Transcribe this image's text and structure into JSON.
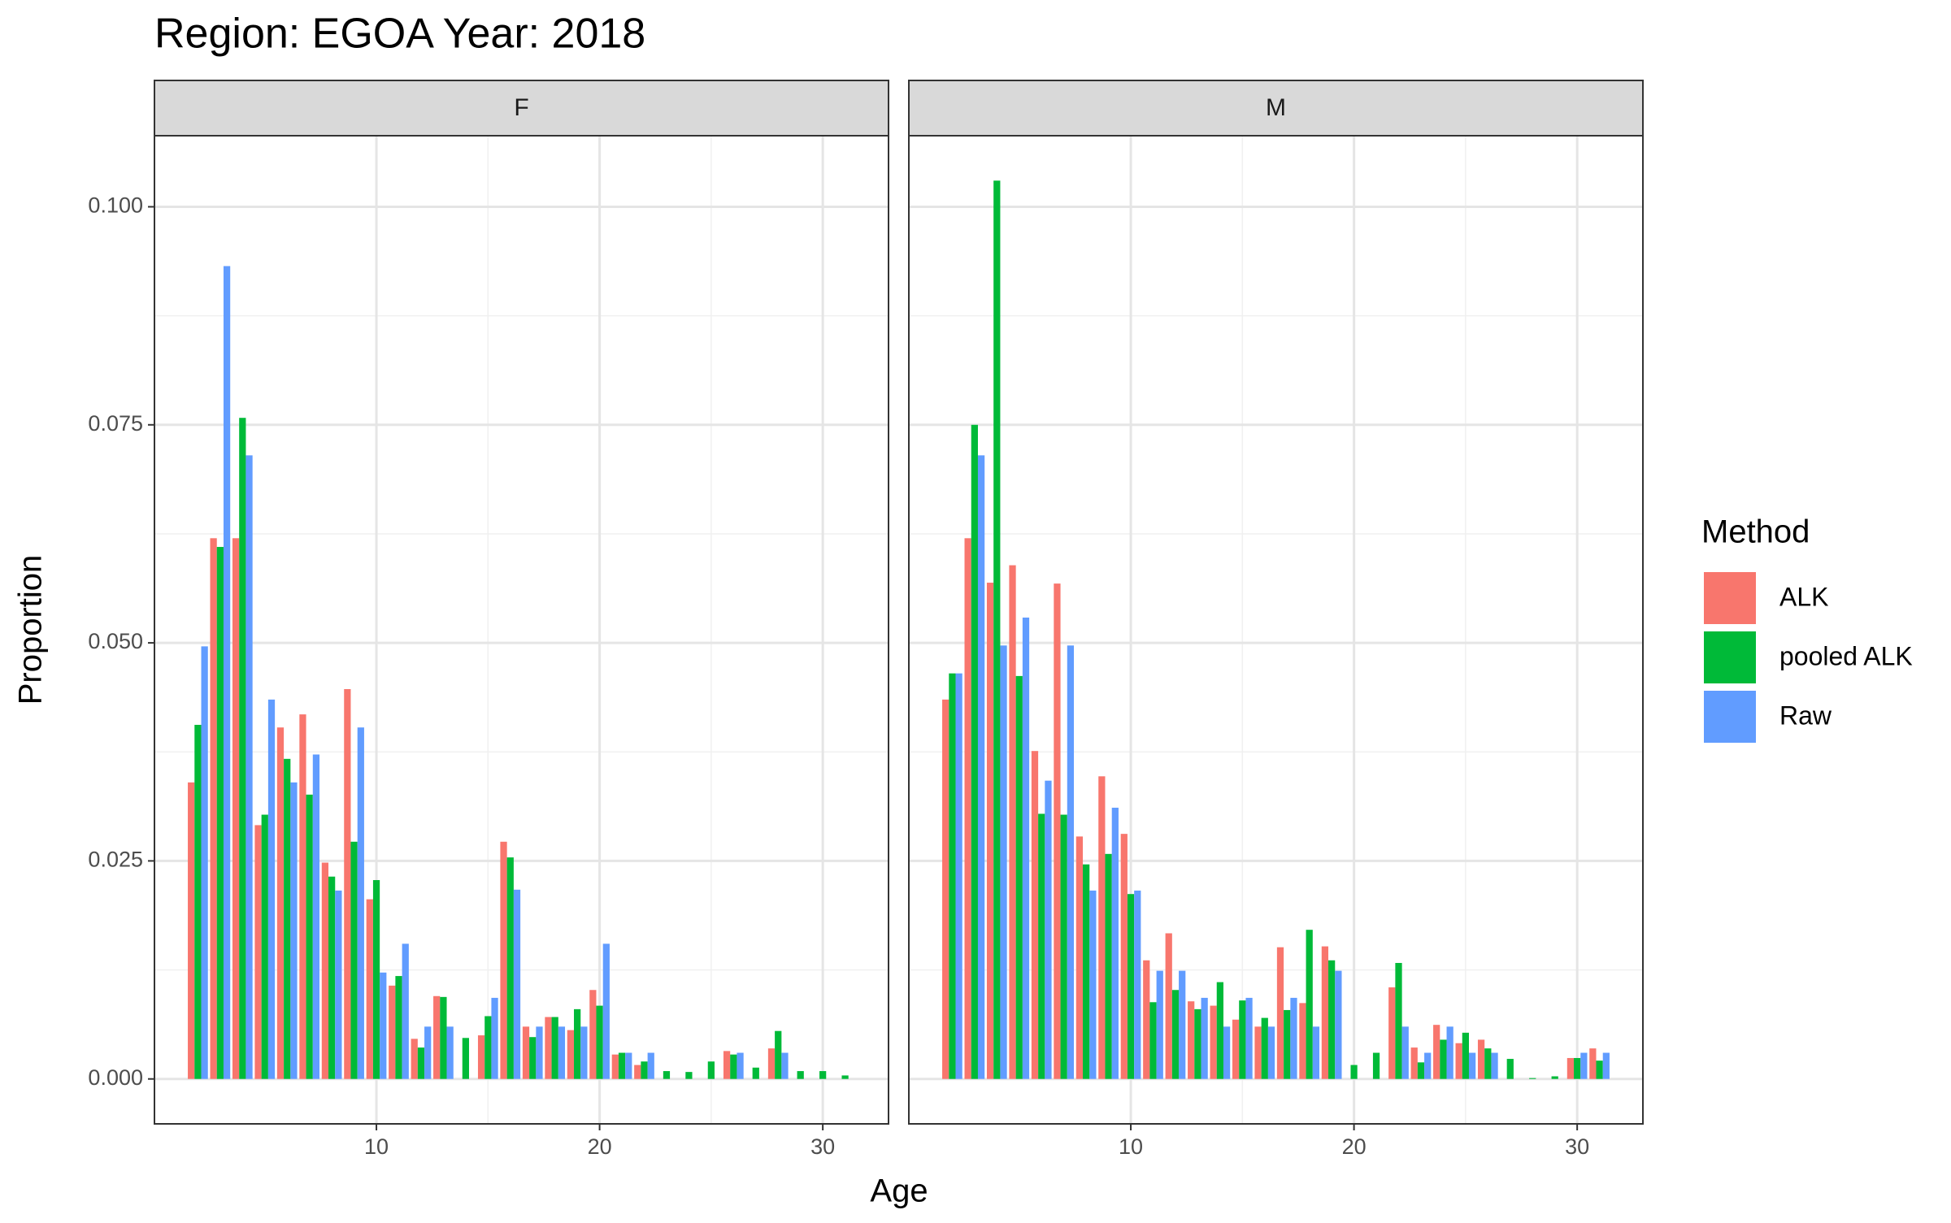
{
  "chart_data": {
    "type": "bar",
    "title": "Region: EGOA Year: 2018",
    "x_label": "Age",
    "y_label": "Proportion",
    "legend_title": "Method",
    "x": [
      2,
      3,
      4,
      5,
      6,
      7,
      8,
      9,
      10,
      11,
      12,
      13,
      14,
      15,
      16,
      17,
      18,
      19,
      20,
      21,
      22,
      23,
      24,
      25,
      26,
      27,
      28,
      29,
      30,
      31
    ],
    "xlim": [
      0.055,
      32.945
    ],
    "xticks": [
      10,
      20,
      30
    ],
    "ylim": [
      -0.00515,
      0.10815
    ],
    "yticks": [
      {
        "value": 0,
        "label": "0.000"
      },
      {
        "value": 0.025,
        "label": "0.025"
      },
      {
        "value": 0.05,
        "label": "0.050"
      },
      {
        "value": 0.075,
        "label": "0.075"
      },
      {
        "value": 0.1,
        "label": "0.100"
      }
    ],
    "grid": true,
    "legend": "right",
    "facets": [
      {
        "name": "F",
        "series": [
          {
            "name": "ALK",
            "color": "#f8766d",
            "values": [
              0.034,
              0.062,
              0.062,
              0.0291,
              0.0403,
              0.0418,
              0.0248,
              0.0447,
              0.0206,
              0.0107,
              0.0046,
              0.0095,
              null,
              0.005,
              0.0272,
              0.006,
              0.0071,
              0.0056,
              0.0102,
              0.0028,
              0.0016,
              null,
              null,
              null,
              0.0032,
              null,
              0.0035,
              null,
              null,
              null
            ]
          },
          {
            "name": "pooled ALK",
            "color": "#00ba38",
            "values": [
              0.0406,
              0.061,
              0.0758,
              0.0303,
              0.0367,
              0.0326,
              0.0232,
              0.0272,
              0.0228,
              0.0118,
              0.0036,
              0.0094,
              0.0047,
              0.0072,
              0.0254,
              0.0048,
              0.0071,
              0.008,
              0.0084,
              0.003,
              0.002,
              0.0009,
              0.0008,
              0.002,
              0.0028,
              0.0013,
              0.0055,
              0.0009,
              0.0009,
              0.0004
            ]
          },
          {
            "name": "Raw",
            "color": "#619cff",
            "values": [
              0.0496,
              0.0932,
              0.0715,
              0.0435,
              0.034,
              0.0372,
              0.0216,
              0.0403,
              0.0122,
              0.0155,
              0.006,
              0.006,
              null,
              0.0093,
              0.0217,
              0.006,
              0.006,
              0.006,
              0.0155,
              0.003,
              0.003,
              null,
              null,
              null,
              0.003,
              null,
              0.003,
              null,
              null,
              null
            ]
          }
        ]
      },
      {
        "name": "M",
        "series": [
          {
            "name": "ALK",
            "color": "#f8766d",
            "values": [
              0.0435,
              0.062,
              0.0569,
              0.0589,
              0.0376,
              0.0568,
              0.0278,
              0.0347,
              0.0281,
              0.0136,
              0.0167,
              0.0089,
              0.0084,
              0.0068,
              0.006,
              0.0151,
              0.0087,
              0.0152,
              null,
              null,
              0.0105,
              0.0036,
              0.0062,
              0.0041,
              0.0045,
              null,
              null,
              null,
              0.0024,
              0.0035
            ]
          },
          {
            "name": "pooled ALK",
            "color": "#00ba38",
            "values": [
              0.0465,
              0.075,
              0.103,
              0.0462,
              0.0304,
              0.0303,
              0.0246,
              0.0258,
              0.0212,
              0.0088,
              0.0102,
              0.008,
              0.0111,
              0.009,
              0.007,
              0.0079,
              0.0171,
              0.0136,
              0.0016,
              0.003,
              0.0133,
              0.0019,
              0.0045,
              0.0053,
              0.0035,
              0.0023,
              0.0001,
              0.0003,
              0.0024,
              0.0021
            ]
          },
          {
            "name": "Raw",
            "color": "#619cff",
            "values": [
              0.0465,
              0.0715,
              0.0497,
              0.0529,
              0.0342,
              0.0497,
              0.0216,
              0.0311,
              0.0216,
              0.0124,
              0.0124,
              0.0093,
              0.006,
              0.0093,
              0.006,
              0.0093,
              0.006,
              0.0124,
              null,
              null,
              0.006,
              0.003,
              0.006,
              0.003,
              0.003,
              null,
              null,
              null,
              0.003,
              0.003
            ]
          }
        ]
      }
    ]
  }
}
